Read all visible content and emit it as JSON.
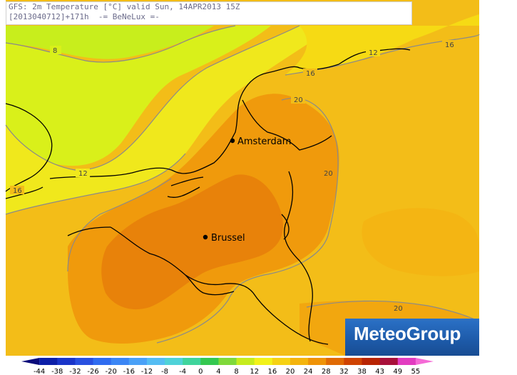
{
  "header": {
    "line1": "GFS: 2m Temperature [°C] valid Sun, 14APR2013 15Z",
    "line2": "[2013040712]+171h  -= BeNeLux =-"
  },
  "cities": [
    {
      "name": "Amsterdam"
    },
    {
      "name": "Brussel"
    }
  ],
  "contour_labels": [
    "8",
    "12",
    "12",
    "16",
    "16",
    "16",
    "20",
    "20",
    "20"
  ],
  "logo": "MeteoGroup",
  "colorbar": {
    "ticks": [
      "-44",
      "-38",
      "-32",
      "-26",
      "-20",
      "-16",
      "-12",
      "-8",
      "-4",
      "0",
      "4",
      "8",
      "12",
      "16",
      "20",
      "24",
      "28",
      "32",
      "38",
      "43",
      "49",
      "55"
    ],
    "colors": [
      "#0a0a7a",
      "#0c1fa8",
      "#1a35c9",
      "#2850e0",
      "#2f6cf0",
      "#3b86f5",
      "#4aa1f7",
      "#55bdf3",
      "#4fd2d8",
      "#3fd49c",
      "#34c850",
      "#7fd93a",
      "#c6ec1e",
      "#f2f21a",
      "#f6d214",
      "#f4b40d",
      "#ef9308",
      "#e06a05",
      "#cf4303",
      "#b82403",
      "#a8103a",
      "#e23cc0",
      "#f56ad6"
    ]
  }
}
